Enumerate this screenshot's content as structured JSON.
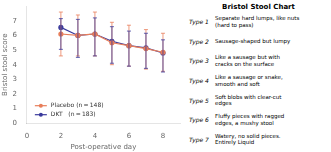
{
  "chart_data": {
    "type": "line",
    "xlabel": "Post-operative day",
    "ylabel": "Bristol stool score",
    "xlim": [
      0,
      9
    ],
    "xticks": [
      0,
      2,
      4,
      6,
      8
    ],
    "ylim": [
      0,
      8
    ],
    "yticks": [
      0,
      1,
      2,
      3,
      4,
      5,
      6,
      7
    ],
    "grid": false,
    "legend": "lower left",
    "marker": "circle",
    "series": [
      {
        "name": "Placebo (n = 148)",
        "color": "#e87e5a",
        "x": [
          2,
          3,
          4,
          5,
          6,
          7,
          8
        ],
        "values": [
          6.1,
          6.0,
          6.1,
          5.5,
          5.3,
          5.1,
          4.85
        ],
        "yerr_low": [
          1.5,
          1.4,
          1.5,
          1.5,
          1.4,
          1.4,
          1.3
        ],
        "yerr_high": [
          1.5,
          1.4,
          1.5,
          1.4,
          1.4,
          1.3,
          1.3
        ]
      },
      {
        "name": "DKT   (n = 183)",
        "color": "#3a3a9c",
        "x": [
          2,
          3,
          4,
          5,
          6,
          7,
          8
        ],
        "values": [
          6.55,
          6.0,
          6.1,
          5.6,
          5.3,
          5.15,
          4.8
        ],
        "yerr_low": [
          1.5,
          1.5,
          1.5,
          1.5,
          1.4,
          1.4,
          1.3
        ],
        "yerr_high": [
          0.6,
          1.1,
          1.1,
          1.0,
          1.0,
          1.0,
          0.9
        ]
      }
    ],
    "annotations": [
      "Bristol Stool Chart",
      "Type 1",
      "Separate hard lumps, like nuts\n(hard to pass)",
      "Type 2",
      "Sausage-shaped but lumpy",
      "Type 3",
      "Like a sausage but with\ncracks on the surface",
      "Type 4",
      "Like a sausage or snake,\nsmooth and soft",
      "Type 5",
      "Soft blobs with clear-cut\nedges",
      "Type 6",
      "Fluffy pieces with ragged\nedges, a mushy stool",
      "Type 7",
      "Watery, no solid pieces.\nEntirely Liquid"
    ]
  }
}
